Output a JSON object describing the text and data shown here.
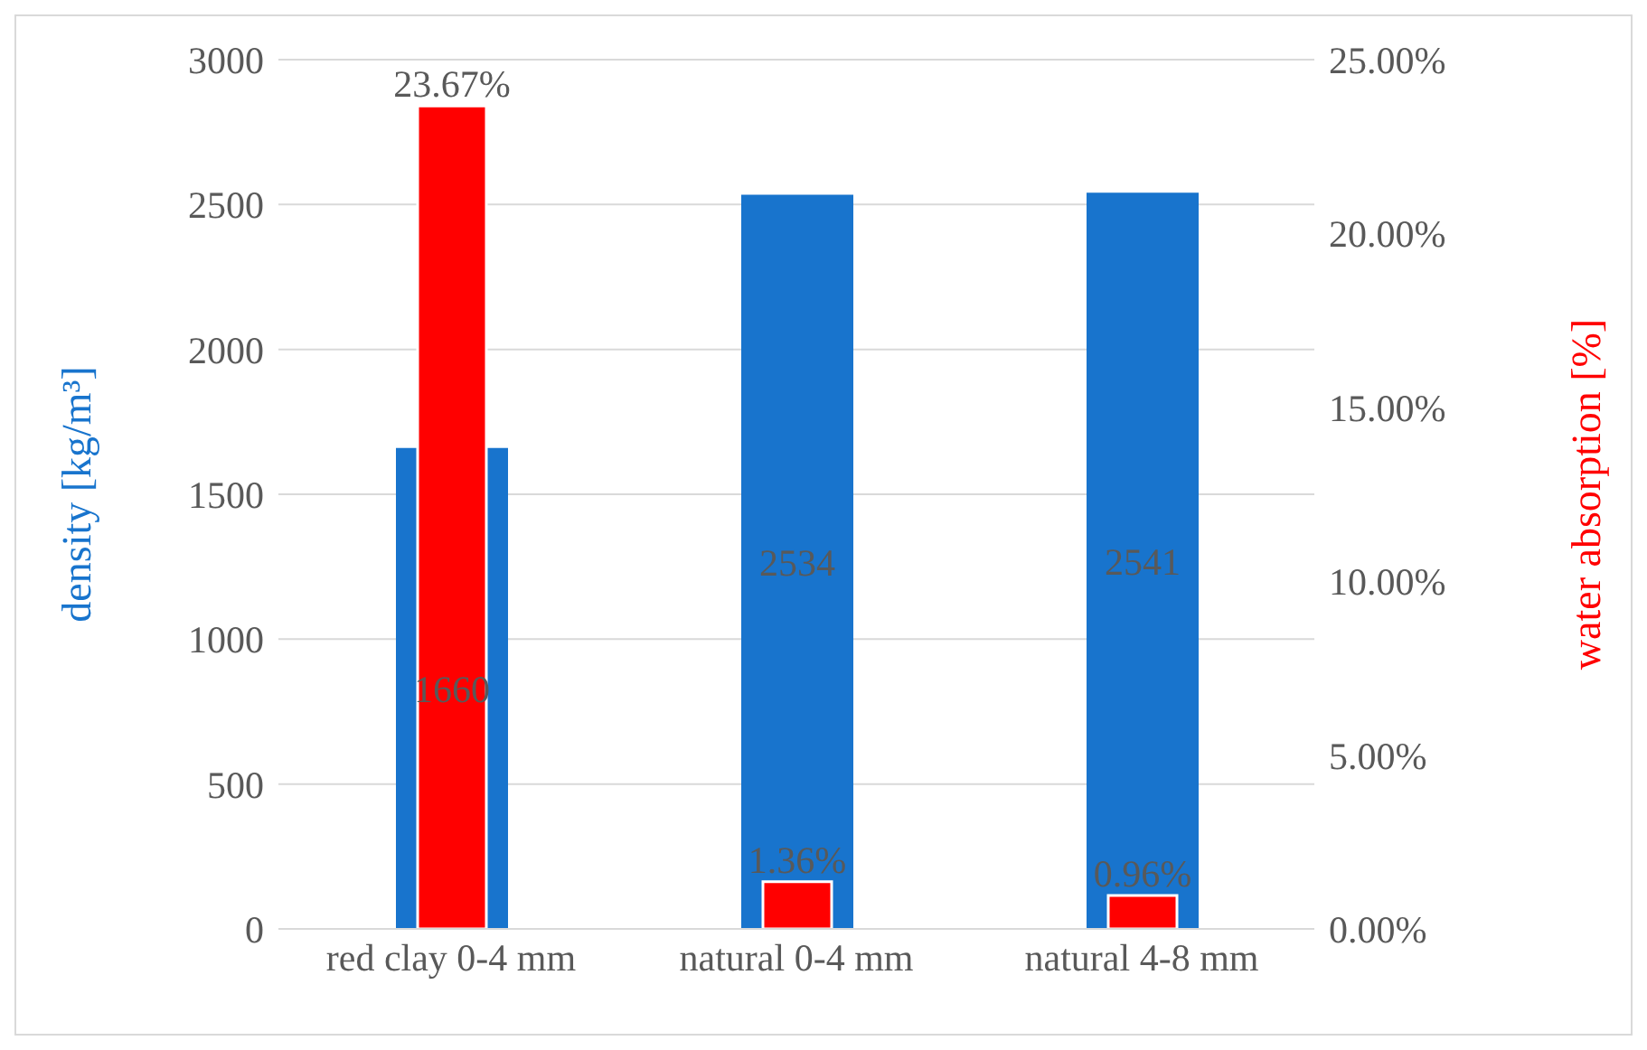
{
  "chart_data": {
    "type": "bar",
    "categories": [
      "red clay 0-4 mm",
      "natural 0-4 mm",
      "natural 4-8 mm"
    ],
    "ylabel": "density [kg/m³]",
    "y2label": "water absorption [%]",
    "series": [
      {
        "color": "#1874cd",
        "values": [
          1660,
          2534,
          2541
        ],
        "value_labels": [
          "1660",
          "2534",
          "2541"
        ]
      },
      {
        "color": "#ff0000",
        "axis": "y2",
        "values": [
          23.67,
          1.36,
          0.96
        ],
        "value_labels": [
          "23.67%",
          "1.36%",
          "0.96%"
        ]
      }
    ],
    "ylim": [
      0,
      3000
    ],
    "yticks": [
      0,
      500,
      1000,
      1500,
      2000,
      2500,
      3000
    ],
    "y2lim": [
      0,
      25
    ],
    "y2ticks": [
      {
        "value": 0,
        "label": "0.00%"
      },
      {
        "value": 5,
        "label": "5.00%"
      },
      {
        "value": 10,
        "label": "10.00%"
      },
      {
        "value": 15,
        "label": "15.00%"
      },
      {
        "value": 20,
        "label": "20.00%"
      },
      {
        "value": 25,
        "label": "25.00%"
      }
    ],
    "grid": "y"
  }
}
